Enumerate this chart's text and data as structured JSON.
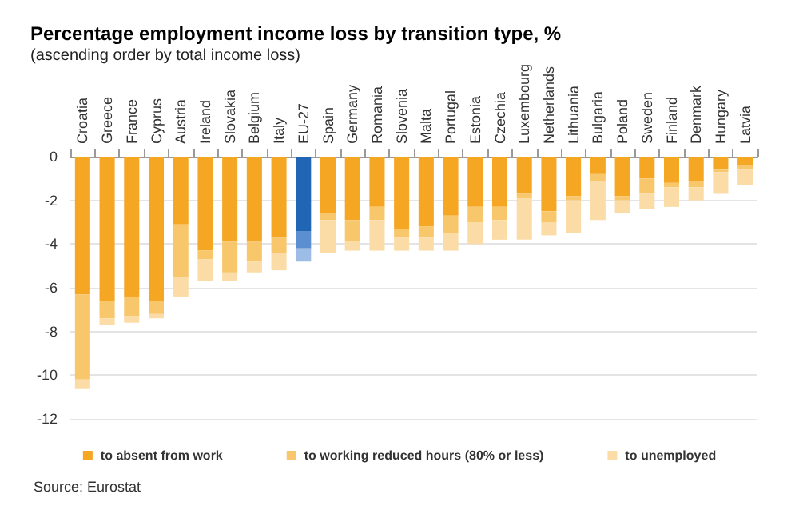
{
  "chart_data": {
    "type": "bar",
    "title": "Percentage employment income loss by transition type, %",
    "subtitle": "(ascending order by total income loss)",
    "categories": [
      "Croatia",
      "Greece",
      "France",
      "Cyprus",
      "Austria",
      "Ireland",
      "Slovakia",
      "Belgium",
      "Italy",
      "EU-27",
      "Spain",
      "Germany",
      "Romania",
      "Slovenia",
      "Malta",
      "Portugal",
      "Estonia",
      "Czechia",
      "Luxembourg",
      "Netherlands",
      "Lithuania",
      "Bulgaria",
      "Poland",
      "Sweden",
      "Finland",
      "Denmark",
      "Hungary",
      "Latvia"
    ],
    "stacked": true,
    "series": [
      {
        "name": "to absent from work",
        "color": "#f5a623",
        "colors": [
          "#f5a623",
          "#f5a623",
          "#f5a623",
          "#f5a623",
          "#f5a623",
          "#f5a623",
          "#f5a623",
          "#f5a623",
          "#f5a623",
          "#2166b5",
          "#f5a623",
          "#f5a623",
          "#f5a623",
          "#f5a623",
          "#f5a623",
          "#f5a623",
          "#f5a623",
          "#f5a623",
          "#f5a623",
          "#f5a623",
          "#f5a623",
          "#f5a623",
          "#f5a623",
          "#f5a623",
          "#f5a623",
          "#f5a623",
          "#f5a623",
          "#f5a623"
        ],
        "values": [
          -6.3,
          -6.6,
          -6.4,
          -6.6,
          -3.1,
          -4.3,
          -3.9,
          -3.9,
          -3.7,
          -3.4,
          -2.6,
          -2.9,
          -2.3,
          -3.3,
          -3.2,
          -2.7,
          -2.3,
          -2.3,
          -1.7,
          -2.5,
          -1.8,
          -0.8,
          -1.8,
          -1.0,
          -1.2,
          -1.1,
          -0.6,
          -0.4
        ]
      },
      {
        "name": "to working reduced hours (80% or less)",
        "color": "#f8c66b",
        "colors": [
          "#f8c66b",
          "#f8c66b",
          "#f8c66b",
          "#f8c66b",
          "#f8c66b",
          "#f8c66b",
          "#f8c66b",
          "#f8c66b",
          "#f8c66b",
          "#5a8fd2",
          "#f8c66b",
          "#f8c66b",
          "#f8c66b",
          "#f8c66b",
          "#f8c66b",
          "#f8c66b",
          "#f8c66b",
          "#f8c66b",
          "#f8c66b",
          "#f8c66b",
          "#f8c66b",
          "#f8c66b",
          "#f8c66b",
          "#f8c66b",
          "#f8c66b",
          "#f8c66b",
          "#f8c66b",
          "#f8c66b"
        ],
        "values": [
          -3.9,
          -0.8,
          -0.9,
          -0.6,
          -2.4,
          -0.4,
          -1.4,
          -0.9,
          -0.7,
          -0.8,
          -0.3,
          -1.0,
          -0.6,
          -0.4,
          -0.5,
          -0.8,
          -0.7,
          -0.6,
          -0.2,
          -0.5,
          -0.2,
          -0.3,
          -0.2,
          -0.7,
          -0.2,
          -0.3,
          -0.1,
          -0.2
        ]
      },
      {
        "name": "to unemployed",
        "color": "#fbdca6",
        "colors": [
          "#fbdca6",
          "#fbdca6",
          "#fbdca6",
          "#fbdca6",
          "#fbdca6",
          "#fbdca6",
          "#fbdca6",
          "#fbdca6",
          "#fbdca6",
          "#9dbce6",
          "#fbdca6",
          "#fbdca6",
          "#fbdca6",
          "#fbdca6",
          "#fbdca6",
          "#fbdca6",
          "#fbdca6",
          "#fbdca6",
          "#fbdca6",
          "#fbdca6",
          "#fbdca6",
          "#fbdca6",
          "#fbdca6",
          "#fbdca6",
          "#fbdca6",
          "#fbdca6",
          "#fbdca6",
          "#fbdca6"
        ],
        "values": [
          -0.4,
          -0.3,
          -0.3,
          -0.2,
          -0.9,
          -1.0,
          -0.4,
          -0.5,
          -0.8,
          -0.6,
          -1.5,
          -0.4,
          -1.4,
          -0.6,
          -0.6,
          -0.8,
          -1.0,
          -0.9,
          -1.9,
          -0.6,
          -1.5,
          -1.8,
          -0.6,
          -0.7,
          -0.9,
          -0.6,
          -1.0,
          -0.7
        ]
      }
    ],
    "ylim": [
      -12,
      0
    ],
    "yticks": [
      -12,
      -10,
      -8,
      -6,
      -4,
      -2,
      0
    ],
    "grid": "y",
    "legend": "bottom",
    "annotations": [
      "Source: Eurostat"
    ]
  }
}
